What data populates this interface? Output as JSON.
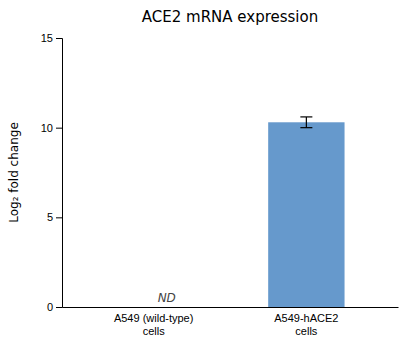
{
  "chart_data": {
    "type": "bar",
    "title": "ACE2 mRNA expression",
    "categories": [
      "A549 (wild-type)\ncells",
      "A549-hACE2\ncells"
    ],
    "values": [
      0,
      10.3
    ],
    "error": [
      null,
      0.3
    ],
    "color": "#6699cc",
    "ylabel": "Log₂ fold change",
    "ylim": [
      0,
      15
    ],
    "yticks": [
      0,
      5,
      10,
      15
    ],
    "grid": false,
    "annotations": [
      {
        "text": "ND",
        "category": "A549 (wild-type)\ncells"
      }
    ]
  }
}
